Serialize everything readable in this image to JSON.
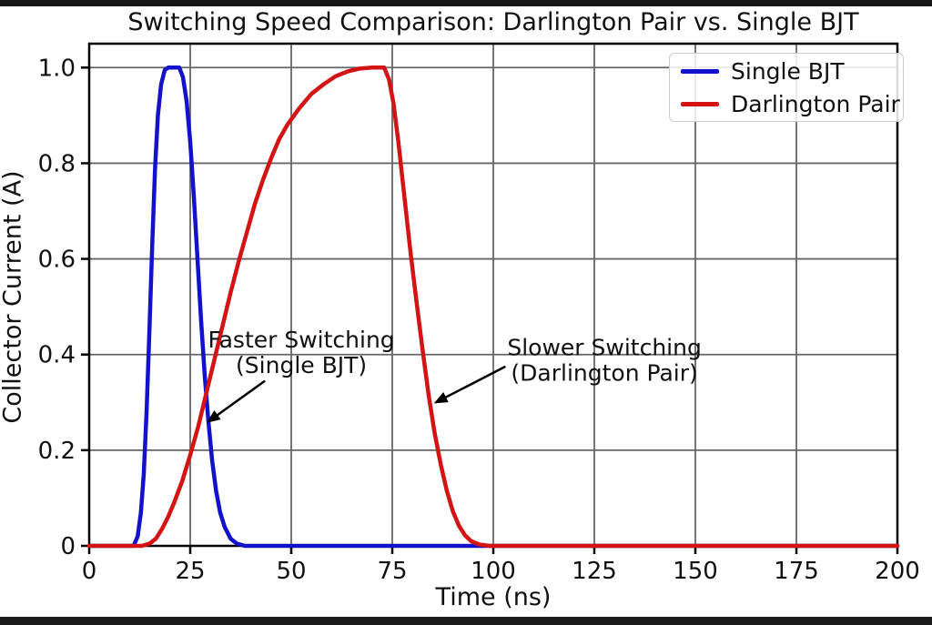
{
  "figure": {
    "title": "Switching Speed Comparison: Darlington Pair vs. Single BJT"
  },
  "chart_data": {
    "type": "line",
    "title": "Switching Speed Comparison: Darlington Pair vs. Single BJT",
    "xlabel": "Time (ns)",
    "ylabel": "Collector Current (A)",
    "xlim": [
      0,
      200
    ],
    "ylim": [
      0,
      1.05
    ],
    "xticks": [
      0,
      25,
      50,
      75,
      100,
      125,
      150,
      175,
      200
    ],
    "xtick_labels": [
      "0",
      "25",
      "50",
      "75",
      "100",
      "125",
      "150",
      "175",
      "200"
    ],
    "yticks": [
      0,
      0.2,
      0.4,
      0.6,
      0.8,
      1.0
    ],
    "ytick_labels": [
      "0",
      "0.2",
      "0.4",
      "0.6",
      "0.8",
      "1.0"
    ],
    "grid": true,
    "grid_color": "#666666",
    "axis_color": "#000000",
    "legend": {
      "position": "upper right",
      "items": [
        {
          "label": "Single BJT",
          "color": "#1212cc"
        },
        {
          "label": "Darlington Pair",
          "color": "#d41414"
        }
      ]
    },
    "series": [
      {
        "name": "Single BJT",
        "color": "#1212cc",
        "points": [
          [
            0,
            0
          ],
          [
            11,
            0
          ],
          [
            12,
            0.02
          ],
          [
            12.8,
            0.07
          ],
          [
            13.5,
            0.15
          ],
          [
            14.2,
            0.28
          ],
          [
            14.9,
            0.45
          ],
          [
            15.6,
            0.63
          ],
          [
            16.3,
            0.79
          ],
          [
            17,
            0.9
          ],
          [
            17.8,
            0.965
          ],
          [
            18.7,
            0.995
          ],
          [
            19.6,
            1.0
          ],
          [
            21,
            1.0
          ],
          [
            22.3,
            1.0
          ],
          [
            23.2,
            0.98
          ],
          [
            24.1,
            0.93
          ],
          [
            25,
            0.845
          ],
          [
            25.9,
            0.73
          ],
          [
            26.8,
            0.6
          ],
          [
            27.7,
            0.47
          ],
          [
            28.6,
            0.355
          ],
          [
            29.5,
            0.26
          ],
          [
            30.4,
            0.18
          ],
          [
            31.4,
            0.115
          ],
          [
            32.4,
            0.07
          ],
          [
            33.5,
            0.04
          ],
          [
            35,
            0.015
          ],
          [
            36.5,
            0.005
          ],
          [
            38.5,
            0
          ],
          [
            60,
            0
          ],
          [
            100,
            0
          ],
          [
            150,
            0
          ],
          [
            200,
            0
          ]
        ]
      },
      {
        "name": "Darlington Pair",
        "color": "#d41414",
        "points": [
          [
            0,
            0
          ],
          [
            13,
            0
          ],
          [
            15,
            0.005
          ],
          [
            16.5,
            0.015
          ],
          [
            18,
            0.035
          ],
          [
            19.5,
            0.06
          ],
          [
            21,
            0.09
          ],
          [
            23,
            0.135
          ],
          [
            25,
            0.19
          ],
          [
            27,
            0.25
          ],
          [
            29,
            0.32
          ],
          [
            31,
            0.39
          ],
          [
            33,
            0.46
          ],
          [
            35,
            0.53
          ],
          [
            37,
            0.595
          ],
          [
            39,
            0.655
          ],
          [
            41,
            0.715
          ],
          [
            43,
            0.765
          ],
          [
            45,
            0.81
          ],
          [
            47,
            0.85
          ],
          [
            49,
            0.88
          ],
          [
            52,
            0.915
          ],
          [
            55,
            0.945
          ],
          [
            58,
            0.965
          ],
          [
            61,
            0.982
          ],
          [
            64,
            0.992
          ],
          [
            67,
            0.998
          ],
          [
            70,
            1.0
          ],
          [
            73,
            1.0
          ],
          [
            74.2,
            0.975
          ],
          [
            75.3,
            0.925
          ],
          [
            76.5,
            0.845
          ],
          [
            78,
            0.73
          ],
          [
            79.5,
            0.615
          ],
          [
            81,
            0.51
          ],
          [
            82.5,
            0.41
          ],
          [
            84,
            0.315
          ],
          [
            85.5,
            0.235
          ],
          [
            87,
            0.17
          ],
          [
            88.5,
            0.115
          ],
          [
            90,
            0.072
          ],
          [
            91.5,
            0.042
          ],
          [
            93,
            0.022
          ],
          [
            94.5,
            0.01
          ],
          [
            96.5,
            0.003
          ],
          [
            99,
            0
          ],
          [
            120,
            0
          ],
          [
            160,
            0
          ],
          [
            200,
            0
          ]
        ]
      }
    ],
    "annotations": [
      {
        "lines": [
          "Faster Switching",
          "(Single BJT)"
        ],
        "text_xy": [
          52.5,
          0.403
        ],
        "arrow_from": [
          43.5,
          0.345
        ],
        "arrow_to": [
          29.5,
          0.26
        ]
      },
      {
        "lines": [
          "Slower Switching",
          "(Darlington Pair)"
        ],
        "text_xy": [
          127.5,
          0.387
        ],
        "arrow_from": [
          103,
          0.375
        ],
        "arrow_to": [
          85.8,
          0.3
        ]
      }
    ]
  }
}
